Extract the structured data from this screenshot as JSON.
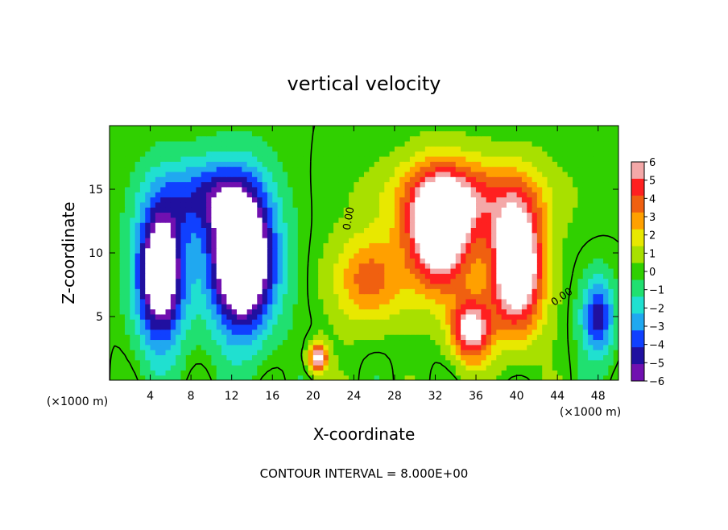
{
  "chart_data": {
    "type": "heatmap",
    "title": "vertical velocity",
    "xlabel": "X-coordinate",
    "ylabel": "Z-coordinate",
    "x_unit": "(×1000 m)",
    "xlim": [
      0,
      50
    ],
    "ylim": [
      0,
      20
    ],
    "x_ticks": [
      4,
      8,
      12,
      16,
      20,
      24,
      28,
      32,
      36,
      40,
      44,
      48
    ],
    "y_ticks": [
      5,
      10,
      15
    ],
    "contour_label": "0.00",
    "contour_interval_text": "CONTOUR INTERVAL = 8.000E+00",
    "colorbar": {
      "levels": [
        6,
        5,
        4,
        3,
        2,
        1,
        0,
        -1,
        -2,
        -3,
        -4,
        -5,
        -6
      ],
      "labels": [
        "6",
        "5",
        "4",
        "3",
        "2",
        "1",
        "0",
        "−1",
        "−2",
        "−3",
        "−4",
        "−5",
        "−6"
      ],
      "colors": [
        "#f4a8a8",
        "#ff2020",
        "#f06010",
        "#ffa000",
        "#e8e800",
        "#a8e000",
        "#30d000",
        "#20e070",
        "#20e0d0",
        "#20a8f0",
        "#1040ff",
        "#2010a0",
        "#7010b0"
      ]
    },
    "features": [
      {
        "name": "downdraft",
        "sign": -1,
        "x": 5.0,
        "z": 8.5,
        "sx": 2.4,
        "sz": 5.5,
        "amp": 9
      },
      {
        "name": "downdraft",
        "sign": -1,
        "x": 13.0,
        "z": 9.5,
        "sx": 3.2,
        "sz": 5.5,
        "amp": 11
      },
      {
        "name": "downdraft",
        "sign": -1,
        "x": 9.5,
        "z": 14.5,
        "sx": 4.5,
        "sz": 3.0,
        "amp": 4
      },
      {
        "name": "downdraft",
        "sign": -1,
        "x": 48.0,
        "z": 5.0,
        "sx": 1.6,
        "sz": 3.0,
        "amp": 5
      },
      {
        "name": "updraft",
        "sign": 1,
        "x": 32.5,
        "z": 11.5,
        "sx": 3.2,
        "sz": 4.5,
        "amp": 9
      },
      {
        "name": "updraft",
        "sign": 1,
        "x": 40.0,
        "z": 9.0,
        "sx": 2.6,
        "sz": 5.0,
        "amp": 10
      },
      {
        "name": "updraft",
        "sign": 1,
        "x": 35.5,
        "z": 4.0,
        "sx": 2.0,
        "sz": 2.5,
        "amp": 7
      },
      {
        "name": "updraft",
        "sign": 1,
        "x": 35.0,
        "z": 14.5,
        "sx": 7.5,
        "sz": 3.0,
        "amp": 4
      },
      {
        "name": "updraft",
        "sign": 1,
        "x": 25.5,
        "z": 8.0,
        "sx": 3.5,
        "sz": 3.5,
        "amp": 4
      },
      {
        "name": "updraft",
        "sign": 1,
        "x": 20.5,
        "z": 1.8,
        "sx": 0.9,
        "sz": 1.2,
        "amp": 7
      }
    ]
  }
}
